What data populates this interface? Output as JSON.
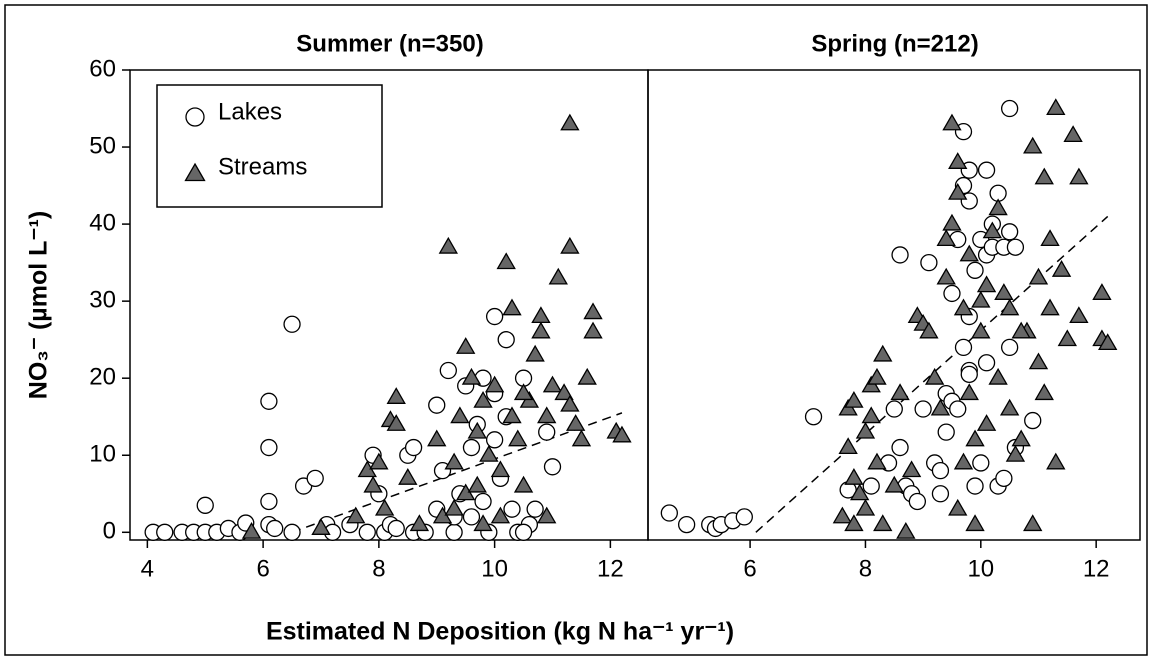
{
  "chart_data": [
    {
      "type": "scatter",
      "title": "Summer (n=350)",
      "ylabel": "NO₃⁻ (µmol L⁻¹)",
      "xlabel": "Estimated N Deposition (kg N ha⁻¹ yr⁻¹)",
      "xlim": [
        3.7,
        12.65
      ],
      "xticks": [
        4,
        6,
        8,
        10,
        12
      ],
      "ylim": [
        -1,
        60
      ],
      "yticks": [
        0,
        10,
        20,
        30,
        40,
        50,
        60
      ],
      "legend": "upper left",
      "series": [
        {
          "name": "Lakes",
          "marker": "circle",
          "color": "#ffffff",
          "x": [
            4.1,
            4.3,
            4.6,
            4.8,
            5.0,
            5.0,
            5.2,
            5.4,
            5.6,
            5.7,
            6.1,
            6.1,
            6.1,
            6.1,
            6.2,
            6.5,
            6.5,
            6.7,
            6.9,
            7.1,
            7.2,
            7.5,
            7.8,
            7.9,
            8.0,
            8.1,
            8.2,
            8.5,
            8.6,
            8.6,
            8.8,
            9.0,
            9.1,
            9.2,
            9.3,
            9.4,
            9.5,
            9.6,
            9.7,
            9.8,
            9.8,
            9.9,
            10.0,
            10.0,
            10.1,
            10.2,
            10.2,
            10.3,
            10.4,
            10.5,
            10.6,
            10.7,
            10.5,
            10.9,
            11.0,
            9.0,
            8.3,
            9.6,
            10.0,
            9.3
          ],
          "values": [
            0,
            0,
            0,
            0,
            3.5,
            0,
            0,
            0.5,
            0,
            1.2,
            17,
            11,
            4,
            1,
            0.5,
            27,
            0,
            6,
            7,
            1,
            0,
            1,
            0,
            10,
            5,
            0,
            1,
            10,
            11,
            0,
            0,
            16.5,
            8,
            21,
            0,
            5,
            19,
            2,
            14,
            20,
            4,
            0,
            28,
            12,
            7,
            25,
            15,
            3,
            0,
            20,
            1,
            3,
            0,
            13,
            8.5,
            3,
            0.5,
            11,
            18,
            2
          ]
        },
        {
          "name": "Streams",
          "marker": "triangle",
          "color": "#666666",
          "x": [
            5.8,
            7.0,
            7.6,
            7.8,
            7.9,
            8.0,
            8.1,
            8.2,
            8.3,
            8.3,
            8.5,
            8.7,
            9.0,
            9.1,
            9.2,
            9.3,
            9.4,
            9.5,
            9.5,
            9.6,
            9.7,
            9.8,
            9.8,
            9.9,
            10.0,
            10.1,
            10.2,
            10.3,
            10.3,
            10.4,
            10.5,
            10.6,
            10.7,
            10.8,
            10.8,
            10.9,
            10.9,
            11.0,
            11.1,
            11.2,
            11.3,
            11.3,
            11.4,
            11.5,
            11.6,
            11.7,
            11.7,
            12.1,
            12.2,
            10.1,
            9.3,
            11.3,
            10.5,
            9.7
          ],
          "values": [
            0,
            0.5,
            2,
            8,
            6,
            9,
            3,
            14.5,
            17.5,
            14,
            7,
            1,
            12,
            2,
            37,
            9,
            15,
            24,
            5,
            20,
            13,
            17,
            1,
            10,
            19,
            2,
            35,
            29,
            15,
            12,
            6,
            17,
            23,
            28,
            26,
            2,
            15,
            19,
            33,
            18,
            37,
            53,
            14,
            12,
            20,
            28.5,
            26,
            13,
            12.5,
            8,
            3,
            16.5,
            18,
            6
          ]
        }
      ],
      "trend": {
        "x": [
          6.5,
          12.2
        ],
        "values": [
          0,
          15.5
        ]
      }
    },
    {
      "type": "scatter",
      "title": "Spring (n=212)",
      "xlim": [
        4.23,
        12.76
      ],
      "xticks": [
        6,
        8,
        10,
        12
      ],
      "ylim": [
        -1,
        60
      ],
      "series": [
        {
          "marker": "circle",
          "color": "#ffffff",
          "x": [
            4.6,
            4.9,
            5.3,
            5.4,
            5.5,
            5.7,
            5.9,
            7.1,
            7.7,
            8.1,
            8.4,
            8.5,
            8.6,
            8.6,
            8.7,
            8.8,
            8.9,
            9.0,
            9.1,
            9.2,
            9.3,
            9.4,
            9.4,
            9.5,
            9.5,
            9.6,
            9.7,
            9.7,
            9.7,
            9.8,
            9.8,
            9.8,
            9.8,
            9.9,
            9.9,
            10.0,
            10.0,
            10.1,
            10.1,
            10.2,
            10.2,
            10.3,
            10.3,
            10.4,
            10.4,
            10.5,
            10.5,
            10.6,
            10.5,
            10.6,
            10.9,
            9.6,
            9.3,
            9.8,
            10.1
          ],
          "values": [
            2.5,
            1,
            1,
            0.5,
            1,
            1.5,
            2,
            15,
            5.5,
            6,
            9,
            16,
            36,
            11,
            6,
            5,
            4,
            16,
            35,
            9,
            8,
            13,
            18,
            31,
            17,
            38,
            45,
            52,
            24,
            43,
            47,
            28,
            21,
            34,
            6,
            38,
            9,
            36,
            47,
            40,
            37,
            6,
            44,
            7,
            37,
            24,
            39,
            37,
            55,
            11,
            14.5,
            16,
            5,
            20.5,
            22
          ]
        },
        {
          "marker": "triangle",
          "color": "#666666",
          "x": [
            7.6,
            7.7,
            7.7,
            7.8,
            7.8,
            7.8,
            7.9,
            8.0,
            8.0,
            8.1,
            8.1,
            8.2,
            8.3,
            8.2,
            8.3,
            8.5,
            8.6,
            8.7,
            8.8,
            8.9,
            9.0,
            9.1,
            9.2,
            9.3,
            9.4,
            9.4,
            9.5,
            9.5,
            9.6,
            9.6,
            9.6,
            9.7,
            9.7,
            9.8,
            9.8,
            9.9,
            9.9,
            10.0,
            10.0,
            10.1,
            10.1,
            10.2,
            10.3,
            10.3,
            10.4,
            10.5,
            10.5,
            10.6,
            10.7,
            10.8,
            10.9,
            10.9,
            11.0,
            11.0,
            11.1,
            11.1,
            11.2,
            11.3,
            11.3,
            11.4,
            11.5,
            11.6,
            11.7,
            11.7,
            12.1,
            12.1,
            12.2,
            11.2,
            10.7
          ],
          "values": [
            2,
            11,
            16,
            17,
            7,
            1,
            5,
            3,
            13,
            15,
            19,
            20,
            23,
            9,
            1,
            6,
            18,
            0,
            8,
            28,
            27,
            26,
            20,
            16,
            33,
            38,
            53,
            40,
            48,
            44,
            3,
            29,
            9,
            36,
            18,
            12,
            1,
            30,
            26,
            32,
            14,
            39,
            42,
            20,
            31,
            29,
            16,
            10,
            12,
            26,
            50,
            1,
            33,
            22,
            46,
            18,
            29,
            55,
            9,
            34,
            25,
            51.5,
            46,
            28,
            31,
            25,
            24.5,
            38,
            26
          ]
        }
      ],
      "trend": {
        "x": [
          6.1,
          12.2
        ],
        "values": [
          0,
          41
        ]
      }
    }
  ]
}
